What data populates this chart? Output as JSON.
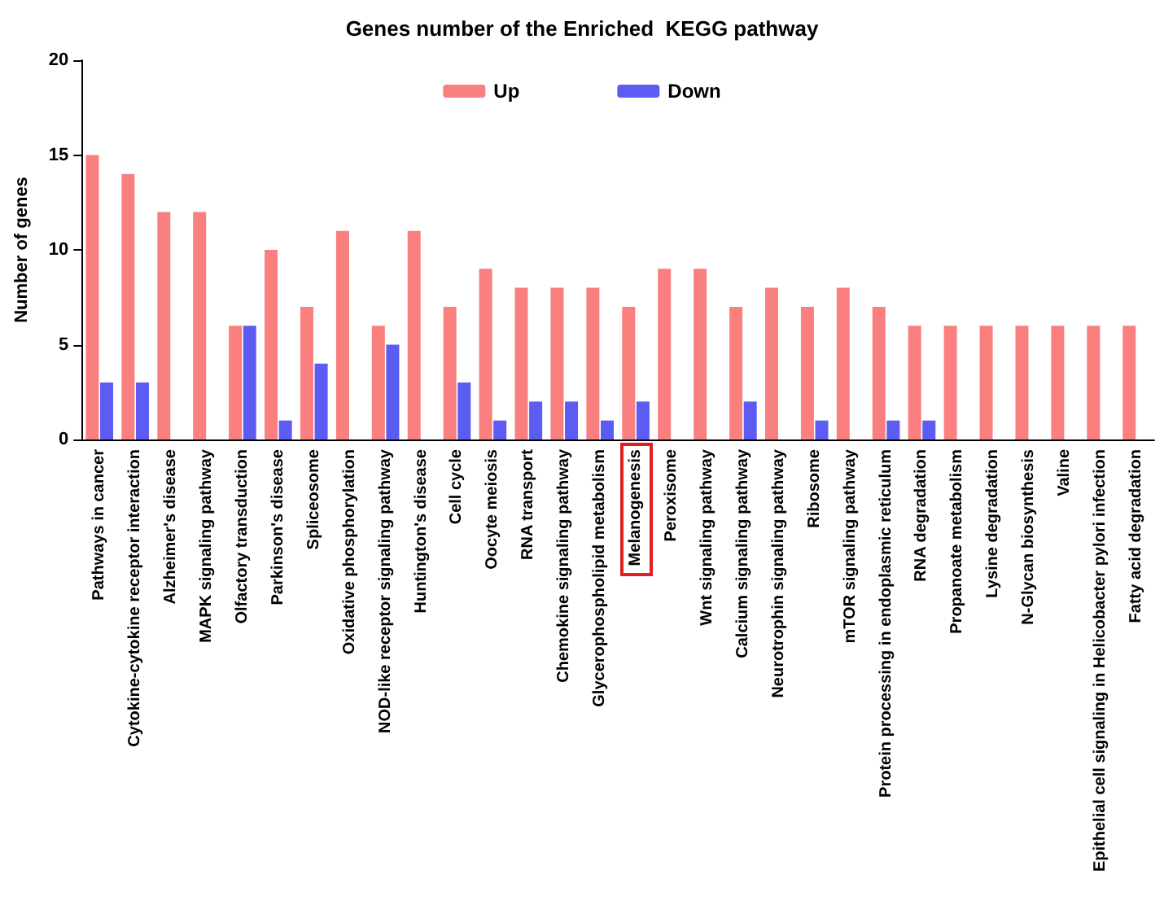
{
  "chart_data": {
    "type": "bar",
    "title": "Genes number of the Enriched  KEGG pathway",
    "ylabel": "Number of genes",
    "categories": [
      "Pathways in cancer",
      "Cytokine-cytokine receptor interaction",
      "Alzheimer's disease",
      "MAPK signaling pathway",
      "Olfactory transduction",
      "Parkinson's disease",
      "Spliceosome",
      "Oxidative phosphorylation",
      "NOD-like receptor signaling pathway",
      "Huntington's disease",
      "Cell cycle",
      "Oocyte meiosis",
      "RNA transport",
      "Chemokine signaling pathway",
      "Glycerophospholipid metabolism",
      "Melanogenesis",
      "Peroxisome",
      "Wnt signaling pathway",
      "Calcium signaling pathway",
      "Neurotrophin signaling pathway",
      "Ribosome",
      "mTOR signaling pathway",
      "Protein processing in endoplasmic reticulum",
      "RNA degradation",
      "Propanoate metabolism",
      "Lysine degradation",
      "N-Glycan biosynthesis",
      "Valine",
      "Epithelial cell signaling in Helicobacter pylori infection",
      "Fatty acid degradation"
    ],
    "series": [
      {
        "name": "Up",
        "color": "#fa7f7f",
        "values": [
          15,
          14,
          12,
          12,
          6,
          10,
          7,
          11,
          6,
          11,
          7,
          9,
          8,
          8,
          8,
          7,
          9,
          9,
          7,
          8,
          7,
          8,
          7,
          6,
          6,
          6,
          6,
          6,
          6,
          6
        ]
      },
      {
        "name": "Down",
        "color": "#5c5cf2",
        "values": [
          3,
          3,
          null,
          null,
          6,
          1,
          4,
          null,
          5,
          null,
          3,
          1,
          2,
          2,
          1,
          2,
          null,
          null,
          2,
          null,
          1,
          null,
          1,
          1,
          null,
          null,
          null,
          null,
          null,
          null
        ]
      }
    ],
    "ylim": [
      0,
      20
    ],
    "yticks": [
      0,
      5,
      10,
      15,
      20
    ],
    "grid": false,
    "legend": "top"
  }
}
